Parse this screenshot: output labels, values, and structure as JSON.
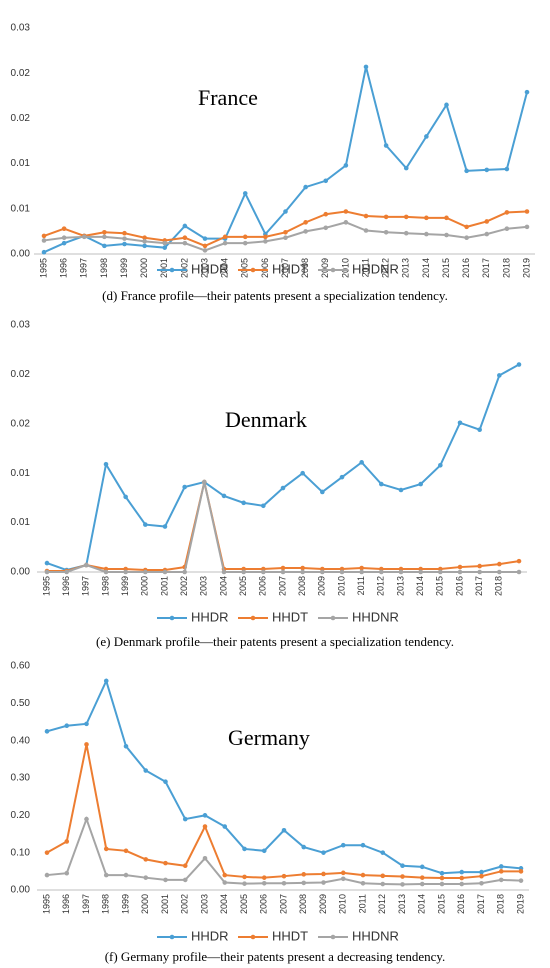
{
  "chart_data": [
    {
      "type": "line",
      "title": "France",
      "caption": "(d) France profile—their patents present a specialization tendency.",
      "categories": [
        "1995",
        "1996",
        "1997",
        "1998",
        "1999",
        "2000",
        "2001",
        "2002",
        "2003",
        "2004",
        "2005",
        "2006",
        "2007",
        "2008",
        "2009",
        "2010",
        "2011",
        "2012",
        "2013",
        "2014",
        "2015",
        "2016",
        "2017",
        "2018",
        "2019"
      ],
      "ylim": [
        0,
        0.025
      ],
      "yticks": [
        {
          "value": 0,
          "label": "0.00"
        },
        {
          "value": 0.005,
          "label": "0.01"
        },
        {
          "value": 0.01,
          "label": "0.01"
        },
        {
          "value": 0.015,
          "label": "0.02"
        },
        {
          "value": 0.02,
          "label": "0.02"
        },
        {
          "value": 0.025,
          "label": "0.03"
        }
      ],
      "series": [
        {
          "name": "HHDR",
          "color": "#4a9fd4",
          "values": [
            0.0002,
            0.0012,
            0.002,
            0.0009,
            0.0011,
            0.0009,
            0.0007,
            0.0031,
            0.0017,
            0.0017,
            0.0067,
            0.0022,
            0.0047,
            0.0074,
            0.0081,
            0.0098,
            0.0207,
            0.012,
            0.0095,
            0.013,
            0.0165,
            0.0092,
            0.0093,
            0.0094,
            0.0179
          ]
        },
        {
          "name": "HHDT",
          "color": "#ed7d31",
          "values": [
            0.002,
            0.0028,
            0.002,
            0.0024,
            0.0023,
            0.0018,
            0.0015,
            0.0018,
            0.0009,
            0.0019,
            0.0019,
            0.0019,
            0.0024,
            0.0035,
            0.0044,
            0.0047,
            0.0042,
            0.0041,
            0.0041,
            0.004,
            0.004,
            0.003,
            0.0036,
            0.0046,
            0.0047
          ]
        },
        {
          "name": "HHDNR",
          "color": "#a5a5a5",
          "values": [
            0.0015,
            0.0018,
            0.0019,
            0.0019,
            0.0017,
            0.0014,
            0.0012,
            0.0012,
            0.0004,
            0.0012,
            0.0012,
            0.0014,
            0.0018,
            0.0025,
            0.0029,
            0.0035,
            0.0026,
            0.0024,
            0.0023,
            0.0022,
            0.0021,
            0.0018,
            0.0022,
            0.0028,
            0.003
          ]
        }
      ]
    },
    {
      "type": "line",
      "title": "Denmark",
      "caption": "(e) Denmark profile—their patents present a specialization tendency.",
      "categories": [
        "1995",
        "1996",
        "1997",
        "1998",
        "1999",
        "2000",
        "2001",
        "2002",
        "2003",
        "2004",
        "2005",
        "2006",
        "2007",
        "2008",
        "2009",
        "2010",
        "2011",
        "2012",
        "2013",
        "2014",
        "2015",
        "2016",
        "2017",
        "2018",
        null
      ],
      "ylim": [
        0,
        0.025
      ],
      "yticks": [
        {
          "value": 0,
          "label": "0.00"
        },
        {
          "value": 0.005,
          "label": "0.01"
        },
        {
          "value": 0.01,
          "label": "0.01"
        },
        {
          "value": 0.015,
          "label": "0.02"
        },
        {
          "value": 0.02,
          "label": "0.02"
        },
        {
          "value": 0.025,
          "label": "0.03"
        }
      ],
      "series": [
        {
          "name": "HHDR",
          "color": "#4a9fd4",
          "values": [
            0.0009,
            0.0002,
            0.0007,
            0.0109,
            0.0076,
            0.0048,
            0.0046,
            0.0086,
            0.0091,
            0.0077,
            0.007,
            0.0067,
            0.0085,
            0.01,
            0.0081,
            0.0096,
            0.0111,
            0.0089,
            0.0083,
            0.0089,
            0.0108,
            0.0151,
            0.0144,
            0.0199,
            0.021
          ]
        },
        {
          "name": "HHDT",
          "color": "#ed7d31",
          "values": [
            0.0001,
            0.0001,
            0.0007,
            0.0003,
            0.0003,
            0.0002,
            0.0002,
            0.0005,
            0.0091,
            0.0003,
            0.0003,
            0.0003,
            0.0004,
            0.0004,
            0.0003,
            0.0003,
            0.0004,
            0.0003,
            0.0003,
            0.0003,
            0.0003,
            0.0005,
            0.0006,
            0.0008,
            0.0011
          ]
        },
        {
          "name": "HHDNR",
          "color": "#a5a5a5",
          "values": [
            0,
            0,
            0.0007,
            0,
            0,
            0,
            0,
            0,
            0.0091,
            0,
            0,
            0,
            0,
            0,
            0,
            0,
            0,
            0,
            0,
            0,
            0,
            0,
            0,
            0,
            0
          ]
        }
      ]
    },
    {
      "type": "line",
      "title": "Germany",
      "caption": "(f) Germany profile—their patents present a decreasing tendency.",
      "categories": [
        "1995",
        "1996",
        "1997",
        "1998",
        "1999",
        "2000",
        "2001",
        "2002",
        "2003",
        "2004",
        "2005",
        "2006",
        "2007",
        "2008",
        "2009",
        "2010",
        "2011",
        "2012",
        "2013",
        "2014",
        "2015",
        "2016",
        "2017",
        "2018",
        "2019"
      ],
      "ylim": [
        0,
        0.6
      ],
      "yticks": [
        {
          "value": 0,
          "label": "0.00"
        },
        {
          "value": 0.1,
          "label": "0.10"
        },
        {
          "value": 0.2,
          "label": "0.20"
        },
        {
          "value": 0.3,
          "label": "0.30"
        },
        {
          "value": 0.4,
          "label": "0.40"
        },
        {
          "value": 0.5,
          "label": "0.50"
        },
        {
          "value": 0.6,
          "label": "0.60"
        }
      ],
      "series": [
        {
          "name": "HHDR",
          "color": "#4a9fd4",
          "values": [
            0.425,
            0.44,
            0.445,
            0.56,
            0.385,
            0.32,
            0.29,
            0.19,
            0.2,
            0.17,
            0.11,
            0.105,
            0.16,
            0.115,
            0.1,
            0.12,
            0.12,
            0.1,
            0.065,
            0.062,
            0.045,
            0.048,
            0.048,
            0.063,
            0.058
          ]
        },
        {
          "name": "HHDT",
          "color": "#ed7d31",
          "values": [
            0.1,
            0.13,
            0.39,
            0.11,
            0.105,
            0.082,
            0.072,
            0.065,
            0.17,
            0.04,
            0.035,
            0.033,
            0.037,
            0.042,
            0.043,
            0.046,
            0.04,
            0.038,
            0.036,
            0.033,
            0.032,
            0.032,
            0.037,
            0.05,
            0.05
          ]
        },
        {
          "name": "HHDNR",
          "color": "#a5a5a5",
          "values": [
            0.04,
            0.045,
            0.19,
            0.04,
            0.04,
            0.033,
            0.027,
            0.027,
            0.085,
            0.02,
            0.017,
            0.018,
            0.018,
            0.019,
            0.02,
            0.03,
            0.018,
            0.016,
            0.015,
            0.016,
            0.016,
            0.016,
            0.018,
            0.027,
            0.025
          ]
        }
      ]
    }
  ]
}
